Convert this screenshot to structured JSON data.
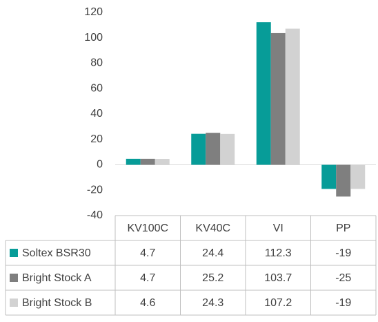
{
  "chart_data": {
    "type": "bar",
    "categories": [
      "KV100C",
      "KV40C",
      "VI",
      "PP"
    ],
    "series": [
      {
        "name": "Soltex BSR30",
        "color": "#079c98",
        "values": [
          4.7,
          24.4,
          112.3,
          -19
        ]
      },
      {
        "name": "Bright Stock A",
        "color": "#7f7f7f",
        "values": [
          4.7,
          25.2,
          103.7,
          -25
        ]
      },
      {
        "name": "Bright Stock B",
        "color": "#d2d2d2",
        "values": [
          4.6,
          24.3,
          107.2,
          -19
        ]
      }
    ],
    "ylim": [
      -40,
      120
    ],
    "yticks": [
      -40,
      -20,
      0,
      20,
      40,
      60,
      80,
      100,
      120
    ],
    "grid": false
  }
}
